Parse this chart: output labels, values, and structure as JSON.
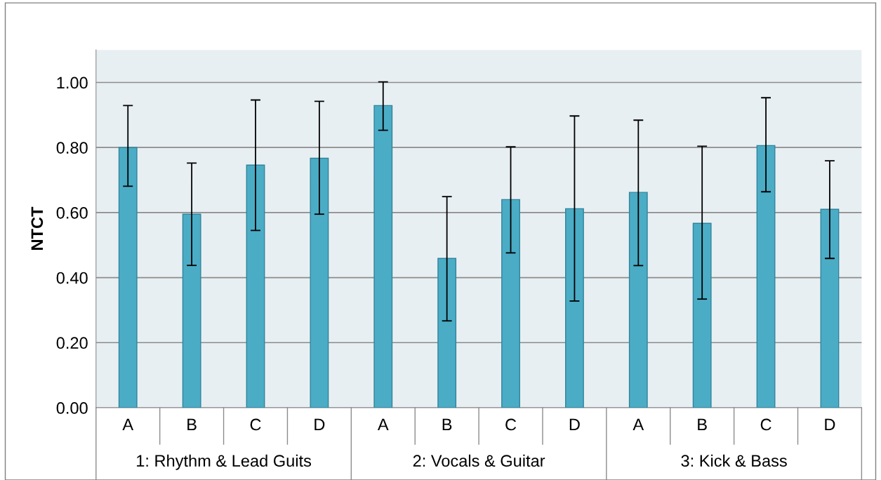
{
  "chart_data": {
    "type": "bar",
    "ylabel": "NTCT",
    "categories": [
      "A",
      "B",
      "C",
      "D",
      "A",
      "B",
      "C",
      "D",
      "A",
      "B",
      "C",
      "D"
    ],
    "annotations": [
      "1: Rhythm & Lead Guits",
      "2: Vocals & Guitar",
      "3: Kick & Bass"
    ],
    "values": [
      0.8,
      0.595,
      0.746,
      0.767,
      0.929,
      0.459,
      0.64,
      0.612,
      0.662,
      0.567,
      0.806,
      0.61
    ],
    "errors": [
      [
        0.681,
        0.929
      ],
      [
        0.4375,
        0.752
      ],
      [
        0.545,
        0.946
      ],
      [
        0.595,
        0.942
      ],
      [
        0.853,
        1.002
      ],
      [
        0.267,
        0.649
      ],
      [
        0.476,
        0.802
      ],
      [
        0.328,
        0.897
      ],
      [
        0.437,
        0.884
      ],
      [
        0.334,
        0.804
      ],
      [
        0.664,
        0.953
      ],
      [
        0.459,
        0.759
      ]
    ],
    "color": "#4bacc6",
    "ylim": [
      0,
      1.1
    ],
    "yticks": [
      {
        "value": 0,
        "label": "0.00"
      },
      {
        "value": 0.2,
        "label": "0.20"
      },
      {
        "value": 0.4,
        "label": "0.40"
      },
      {
        "value": 0.6,
        "label": "0.60"
      },
      {
        "value": 0.8,
        "label": "0.80"
      },
      {
        "value": 1.0,
        "label": "1.00"
      }
    ],
    "grid": "y"
  }
}
